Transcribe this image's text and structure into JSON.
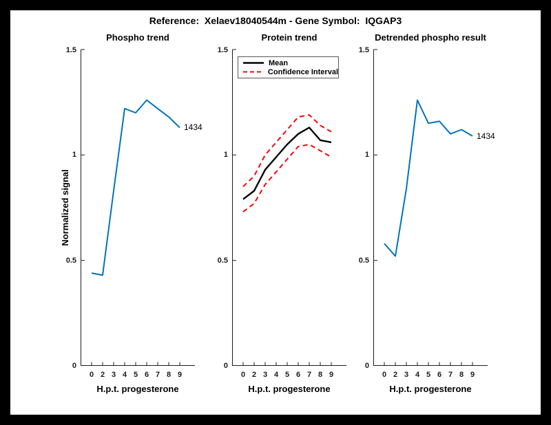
{
  "figure": {
    "title": "Reference:  Xelaev18040544m - Gene Symbol:  IQGAP3",
    "border_color": "#000000",
    "background": "#ffffff"
  },
  "axes_defaults": {
    "xlabel": "H.p.t. progesterone",
    "ylabel": "Normalized signal",
    "y_ticks": [
      "0",
      "0.5",
      "1",
      "1.5"
    ],
    "ylim": [
      0,
      1.5
    ],
    "grid": false,
    "box": "off"
  },
  "colors": {
    "signal_blue": "#0072bd",
    "mean_black": "#000000",
    "ci_red": "#ff0000"
  },
  "chart_data": [
    {
      "type": "line",
      "title": "Phospho trend",
      "xlabel": "H.p.t. progesterone",
      "ylabel": "Normalized signal",
      "x_tick_labels": [
        "0",
        "2",
        "3",
        "4",
        "5",
        "6",
        "7",
        "8",
        "9"
      ],
      "ylim": [
        0,
        1.5
      ],
      "series": [
        {
          "name": "Phospho signal 1434",
          "color": "#0072bd",
          "style": "solid",
          "values": [
            0.44,
            0.43,
            0.83,
            1.22,
            1.2,
            1.26,
            1.22,
            1.18,
            1.13
          ]
        }
      ],
      "annotation": {
        "text": "1434",
        "series": 0,
        "point": "last"
      }
    },
    {
      "type": "line",
      "title": "Protein trend",
      "xlabel": "H.p.t. progesterone",
      "x_tick_labels": [
        "0",
        "2",
        "3",
        "4",
        "5",
        "6",
        "7",
        "8",
        "9"
      ],
      "ylim": [
        0,
        1.5
      ],
      "legend": {
        "position": "top-left",
        "entries": [
          {
            "label": "Mean",
            "color": "#000000",
            "style": "solid"
          },
          {
            "label": "Confidence Interval",
            "color": "#ff0000",
            "style": "dashed"
          }
        ]
      },
      "series": [
        {
          "name": "Confidence interval upper",
          "color": "#ff0000",
          "style": "dashed",
          "values": [
            0.85,
            0.9,
            1.0,
            1.06,
            1.12,
            1.18,
            1.19,
            1.14,
            1.11
          ]
        },
        {
          "name": "Confidence interval lower",
          "color": "#ff0000",
          "style": "dashed",
          "values": [
            0.73,
            0.77,
            0.86,
            0.92,
            0.98,
            1.04,
            1.05,
            1.02,
            0.99
          ]
        },
        {
          "name": "Mean",
          "color": "#000000",
          "style": "solid",
          "values": [
            0.79,
            0.83,
            0.93,
            0.99,
            1.05,
            1.1,
            1.13,
            1.07,
            1.06
          ]
        }
      ]
    },
    {
      "type": "line",
      "title": "Detrended phospho result",
      "xlabel": "H.p.t. progesterone",
      "x_tick_labels": [
        "0",
        "2",
        "3",
        "4",
        "5",
        "6",
        "7",
        "8",
        "9"
      ],
      "ylim": [
        0,
        1.5
      ],
      "series": [
        {
          "name": "Detrended phospho signal 1434",
          "color": "#0072bd",
          "style": "solid",
          "values": [
            0.58,
            0.52,
            0.84,
            1.26,
            1.15,
            1.16,
            1.1,
            1.12,
            1.09
          ]
        }
      ],
      "annotation": {
        "text": "1434",
        "series": 0,
        "point": "last"
      }
    }
  ]
}
